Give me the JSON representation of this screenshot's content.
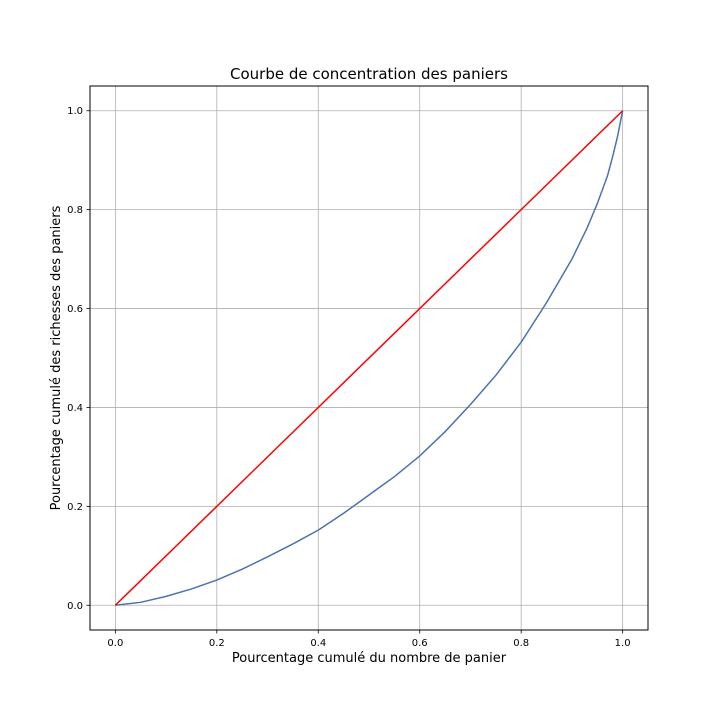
{
  "chart_data": {
    "type": "line",
    "title": "Courbe de concentration des paniers",
    "xlabel": "Pourcentage cumulé du nombre de panier",
    "ylabel": "Pourcentage cumulé des richesses des paniers",
    "xlim": [
      -0.05,
      1.05
    ],
    "ylim": [
      -0.05,
      1.05
    ],
    "grid": true,
    "xticks": [
      "0.0",
      "0.2",
      "0.4",
      "0.6",
      "0.8",
      "1.0"
    ],
    "yticks": [
      "0.0",
      "0.2",
      "0.4",
      "0.6",
      "0.8",
      "1.0"
    ],
    "series": [
      {
        "color": "#4c72b0",
        "x": [
          0,
          0.05,
          0.1,
          0.15,
          0.2,
          0.25,
          0.3,
          0.35,
          0.4,
          0.45,
          0.5,
          0.55,
          0.6,
          0.65,
          0.7,
          0.75,
          0.8,
          0.85,
          0.9,
          0.93,
          0.95,
          0.97,
          0.98,
          0.99,
          1.0
        ],
        "y": [
          0,
          0.006,
          0.018,
          0.033,
          0.051,
          0.073,
          0.098,
          0.124,
          0.152,
          0.186,
          0.223,
          0.26,
          0.302,
          0.351,
          0.406,
          0.465,
          0.532,
          0.612,
          0.7,
          0.763,
          0.812,
          0.868,
          0.906,
          0.948,
          1.0
        ]
      },
      {
        "color": "#ff0000",
        "x": [
          0,
          1
        ],
        "y": [
          0,
          1
        ]
      }
    ]
  }
}
